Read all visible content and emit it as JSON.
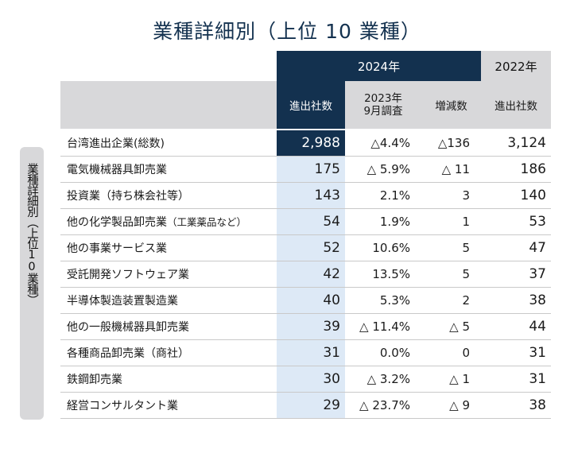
{
  "title": "業種詳細別（上位 10 業種）",
  "side_label": "業種詳細別（上位10業種）",
  "header": {
    "year_2024": "2024年",
    "year_2022": "2022年",
    "col_2024_count": "進出社数",
    "col_2023_line1": "2023年",
    "col_2023_line2": "9月調査",
    "col_diff": "増減数",
    "col_2022_count": "進出社数"
  },
  "rows": [
    {
      "name": "台湾進出企業(総数)",
      "c2024": "2,988",
      "c2023": "△4.4%",
      "diff": "△136",
      "c2022": "3,124"
    },
    {
      "name": "電気機械器具卸売業",
      "c2024": "175",
      "c2023": "△ 5.9%",
      "diff": "△ 11",
      "c2022": "186"
    },
    {
      "name": "投資業（持ち株会社等）",
      "c2024": "143",
      "c2023": "2.1%",
      "diff": "3",
      "c2022": "140"
    },
    {
      "name": "他の化学製品卸売業",
      "name_suffix": "（工業薬品など）",
      "c2024": "54",
      "c2023": "1.9%",
      "diff": "1",
      "c2022": "53"
    },
    {
      "name": "他の事業サービス業",
      "c2024": "52",
      "c2023": "10.6%",
      "diff": "5",
      "c2022": "47"
    },
    {
      "name": "受託開発ソフトウェア業",
      "c2024": "42",
      "c2023": "13.5%",
      "diff": "5",
      "c2022": "37"
    },
    {
      "name": "半導体製造装置製造業",
      "c2024": "40",
      "c2023": "5.3%",
      "diff": "2",
      "c2022": "38"
    },
    {
      "name": "他の一般機械器具卸売業",
      "c2024": "39",
      "c2023": "△ 11.4%",
      "diff": "△ 5",
      "c2022": "44"
    },
    {
      "name": "各種商品卸売業（商社）",
      "c2024": "31",
      "c2023": "0.0%",
      "diff": "0",
      "c2022": "31"
    },
    {
      "name": "鉄鋼卸売業",
      "c2024": "30",
      "c2023": "△ 3.2%",
      "diff": "△ 1",
      "c2022": "31"
    },
    {
      "name": "経営コンサルタント業",
      "c2024": "29",
      "c2023": "△ 23.7%",
      "diff": "△ 9",
      "c2022": "38"
    }
  ]
}
